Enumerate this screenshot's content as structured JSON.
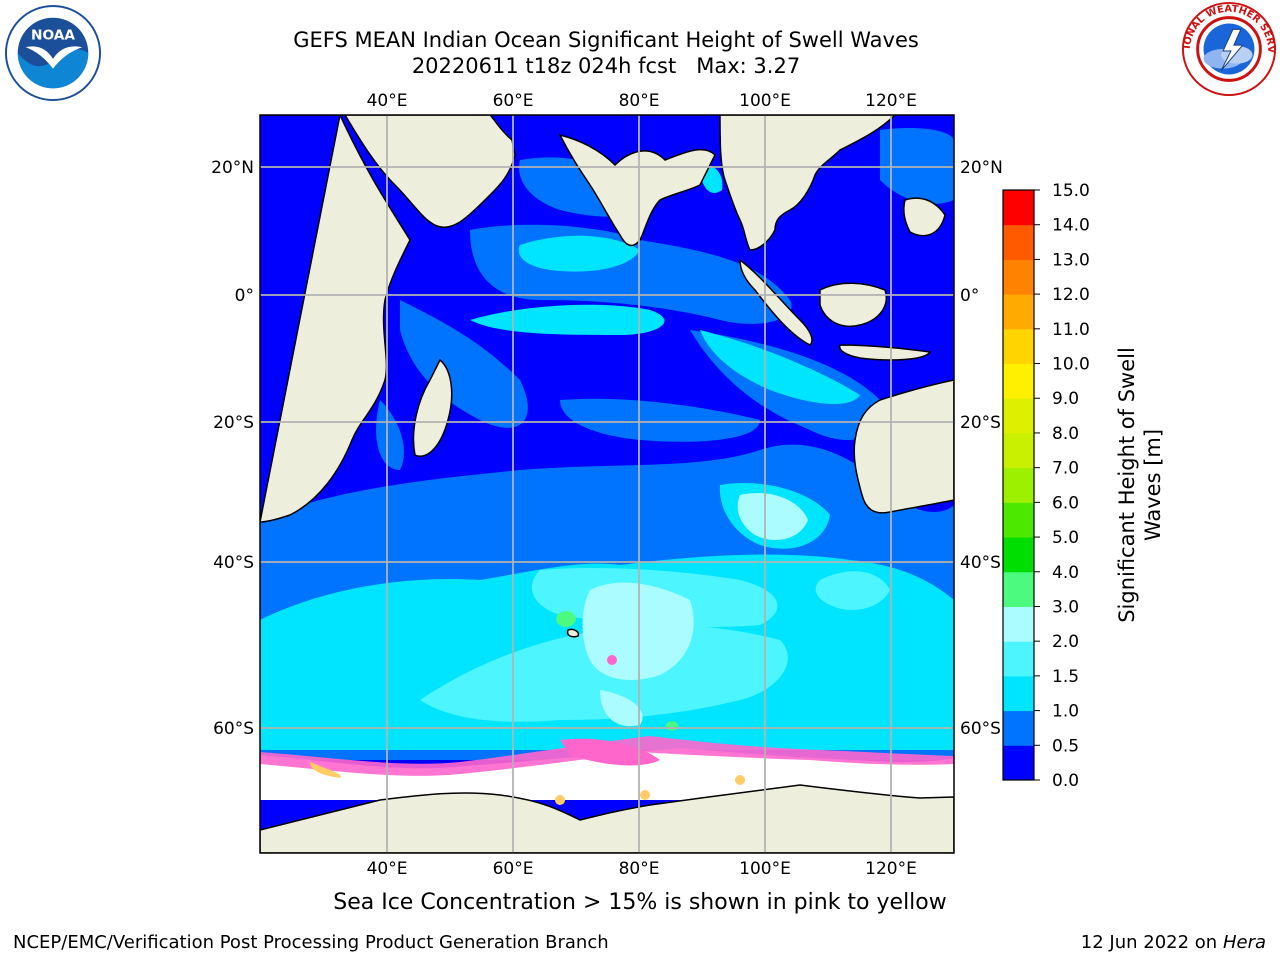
{
  "header": {
    "title_line1": "GEFS MEAN Indian Ocean Significant Height of Swell Waves",
    "title_run": "20220611 t18z 024h fcst",
    "title_max": "Max: 3.27"
  },
  "map": {
    "lon_labels": [
      "40°E",
      "60°E",
      "80°E",
      "100°E",
      "120°E"
    ],
    "lat_labels": [
      "20°N",
      "0°",
      "20°S",
      "40°S",
      "60°S"
    ],
    "colors": {
      "land": "#eeeedd",
      "ice": "#ffffff",
      "grid": "#b3b3b3"
    }
  },
  "colorbar": {
    "title_line1": "Significant Height of Swell",
    "title_line2": "Waves [m]",
    "levels": [
      "0.0",
      "0.5",
      "1.0",
      "1.5",
      "2.0",
      "3.0",
      "4.0",
      "5.0",
      "6.0",
      "7.0",
      "8.0",
      "9.0",
      "10.0",
      "11.0",
      "12.0",
      "13.0",
      "14.0",
      "15.0"
    ],
    "colors": [
      "#0000ff",
      "#0074ff",
      "#00e5ff",
      "#4cf5ff",
      "#aafcff",
      "#4cfa80",
      "#00dd00",
      "#4ce800",
      "#9cf000",
      "#c8f000",
      "#ddf000",
      "#fff000",
      "#ffd400",
      "#ffaa00",
      "#ff8200",
      "#ff5a00",
      "#ff0000"
    ]
  },
  "note": "Sea Ice Concentration > 15% is shown in pink to yellow",
  "footer": {
    "left": "NCEP/EMC/Verification Post Processing Product Generation Branch",
    "right_date": "12 Jun 2022 on",
    "right_machine": "Hera"
  },
  "logos": {
    "noaa_text": "NOAA",
    "nws_text": "NATIONAL WEATHER SERVICE"
  }
}
